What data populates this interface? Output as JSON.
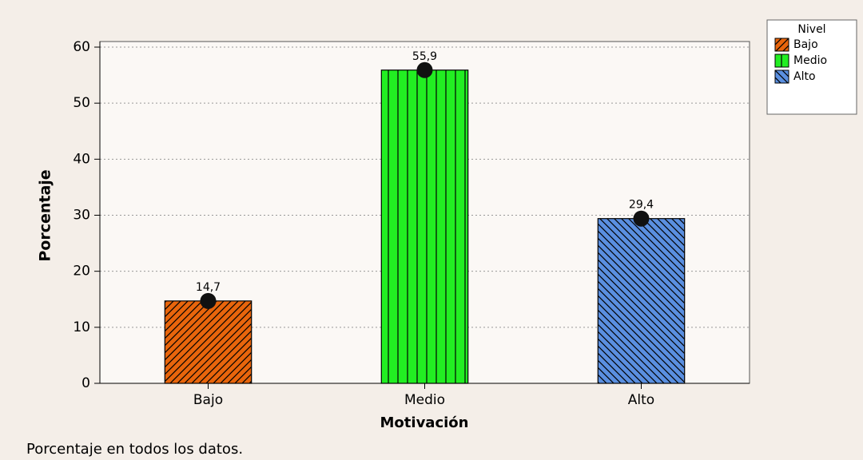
{
  "chart_data": {
    "type": "bar",
    "categories": [
      "Bajo",
      "Medio",
      "Alto"
    ],
    "values": [
      14.7,
      55.9,
      29.4
    ],
    "value_labels": [
      "14,7",
      "55,9",
      "29,4"
    ],
    "colors": [
      "#e8650c",
      "#22ee22",
      "#5a8fe0"
    ],
    "hatches": [
      "diagonal-up",
      "vertical",
      "diagonal-down"
    ],
    "ylim": [
      0,
      60
    ],
    "yticks": [
      0,
      10,
      20,
      30,
      40,
      50,
      60
    ],
    "grid": true,
    "y_label": "Porcentaje",
    "x_label": "Motivación",
    "legend": {
      "title": "Nivel",
      "position": "right"
    },
    "footnote": "Porcentaje en todos los datos."
  }
}
